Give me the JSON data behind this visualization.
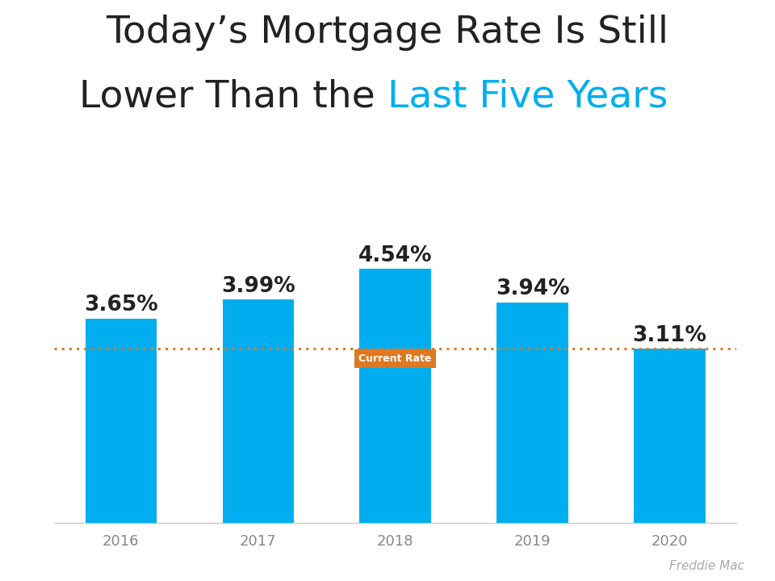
{
  "years": [
    "2016",
    "2017",
    "2018",
    "2019",
    "2020"
  ],
  "values": [
    3.65,
    3.99,
    4.54,
    3.94,
    3.11
  ],
  "bar_color": "#00AEEF",
  "dotted_line_y": 3.11,
  "dotted_line_color": "#E07820",
  "title_line1": "Today’s Mortgage Rate Is Still",
  "title_line2_black": "Lower Than the ",
  "title_line2_blue": "Last Five Years",
  "title_black_color": "#222222",
  "title_blue_color": "#00AEEF",
  "title_fontsize": 34,
  "bar_label_fontsize": 19,
  "bar_label_color": "#222222",
  "xlabel_fontsize": 13,
  "xlabel_color": "#888888",
  "current_rate_label": "Current Rate",
  "current_rate_label_color": "#ffffff",
  "current_rate_box_color": "#E07820",
  "source_text": "Freddie Mac",
  "source_color": "#aaaaaa",
  "background_color": "#ffffff",
  "ylim": [
    0,
    5.4
  ]
}
